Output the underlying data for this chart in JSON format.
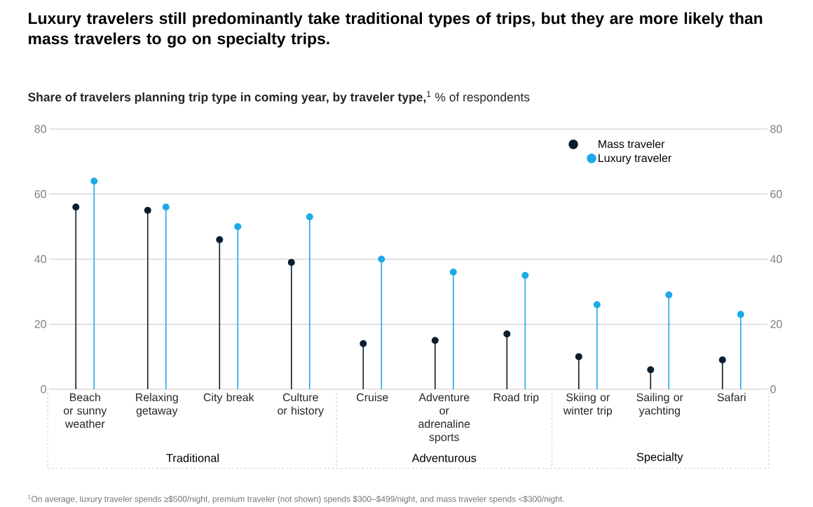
{
  "chart_data": {
    "type": "lollipop",
    "title": "Luxury travelers still predominantly take traditional types of trips, but they are more likely than mass travelers to go on specialty trips.",
    "subtitle": "**Share of travelers planning trip type in coming year, by traveler type,**$^{1}$ % of respondents",
    "categories": [
      "Beach or sunny weather",
      "Relaxing getaway",
      "City break",
      "Culture or history",
      "Cruise",
      "Adventure or adrenaline sports",
      "Road trip",
      "Skiing or winter trip",
      "Sailing or yachting",
      "Safari"
    ],
    "series": [
      {
        "name": "Mass traveler",
        "color": "#0b1d2e",
        "values": [
          56,
          55,
          46,
          39,
          14,
          15,
          17,
          10,
          6,
          9
        ]
      },
      {
        "name": "Luxury traveler",
        "color": "#1fa9e8",
        "values": [
          64,
          56,
          50,
          53,
          40,
          36,
          35,
          26,
          29,
          23
        ]
      }
    ],
    "ylim": [
      0,
      80
    ],
    "yticks": [
      0,
      20,
      40,
      60,
      80
    ],
    "y2lim": [
      0,
      80
    ],
    "y2ticks": [
      0,
      20,
      40,
      60,
      80
    ],
    "grid": "y",
    "legend": "top right",
    "marker": "circle",
    "annotations": [
      "Traditional",
      "Adventurous",
      "Specialty",
      "$^{1}$On average, luxury traveler spends ≥$500/night, premium traveler (not shown) spends $300–$499/night, and mass traveler spends <$300/night."
    ]
  }
}
